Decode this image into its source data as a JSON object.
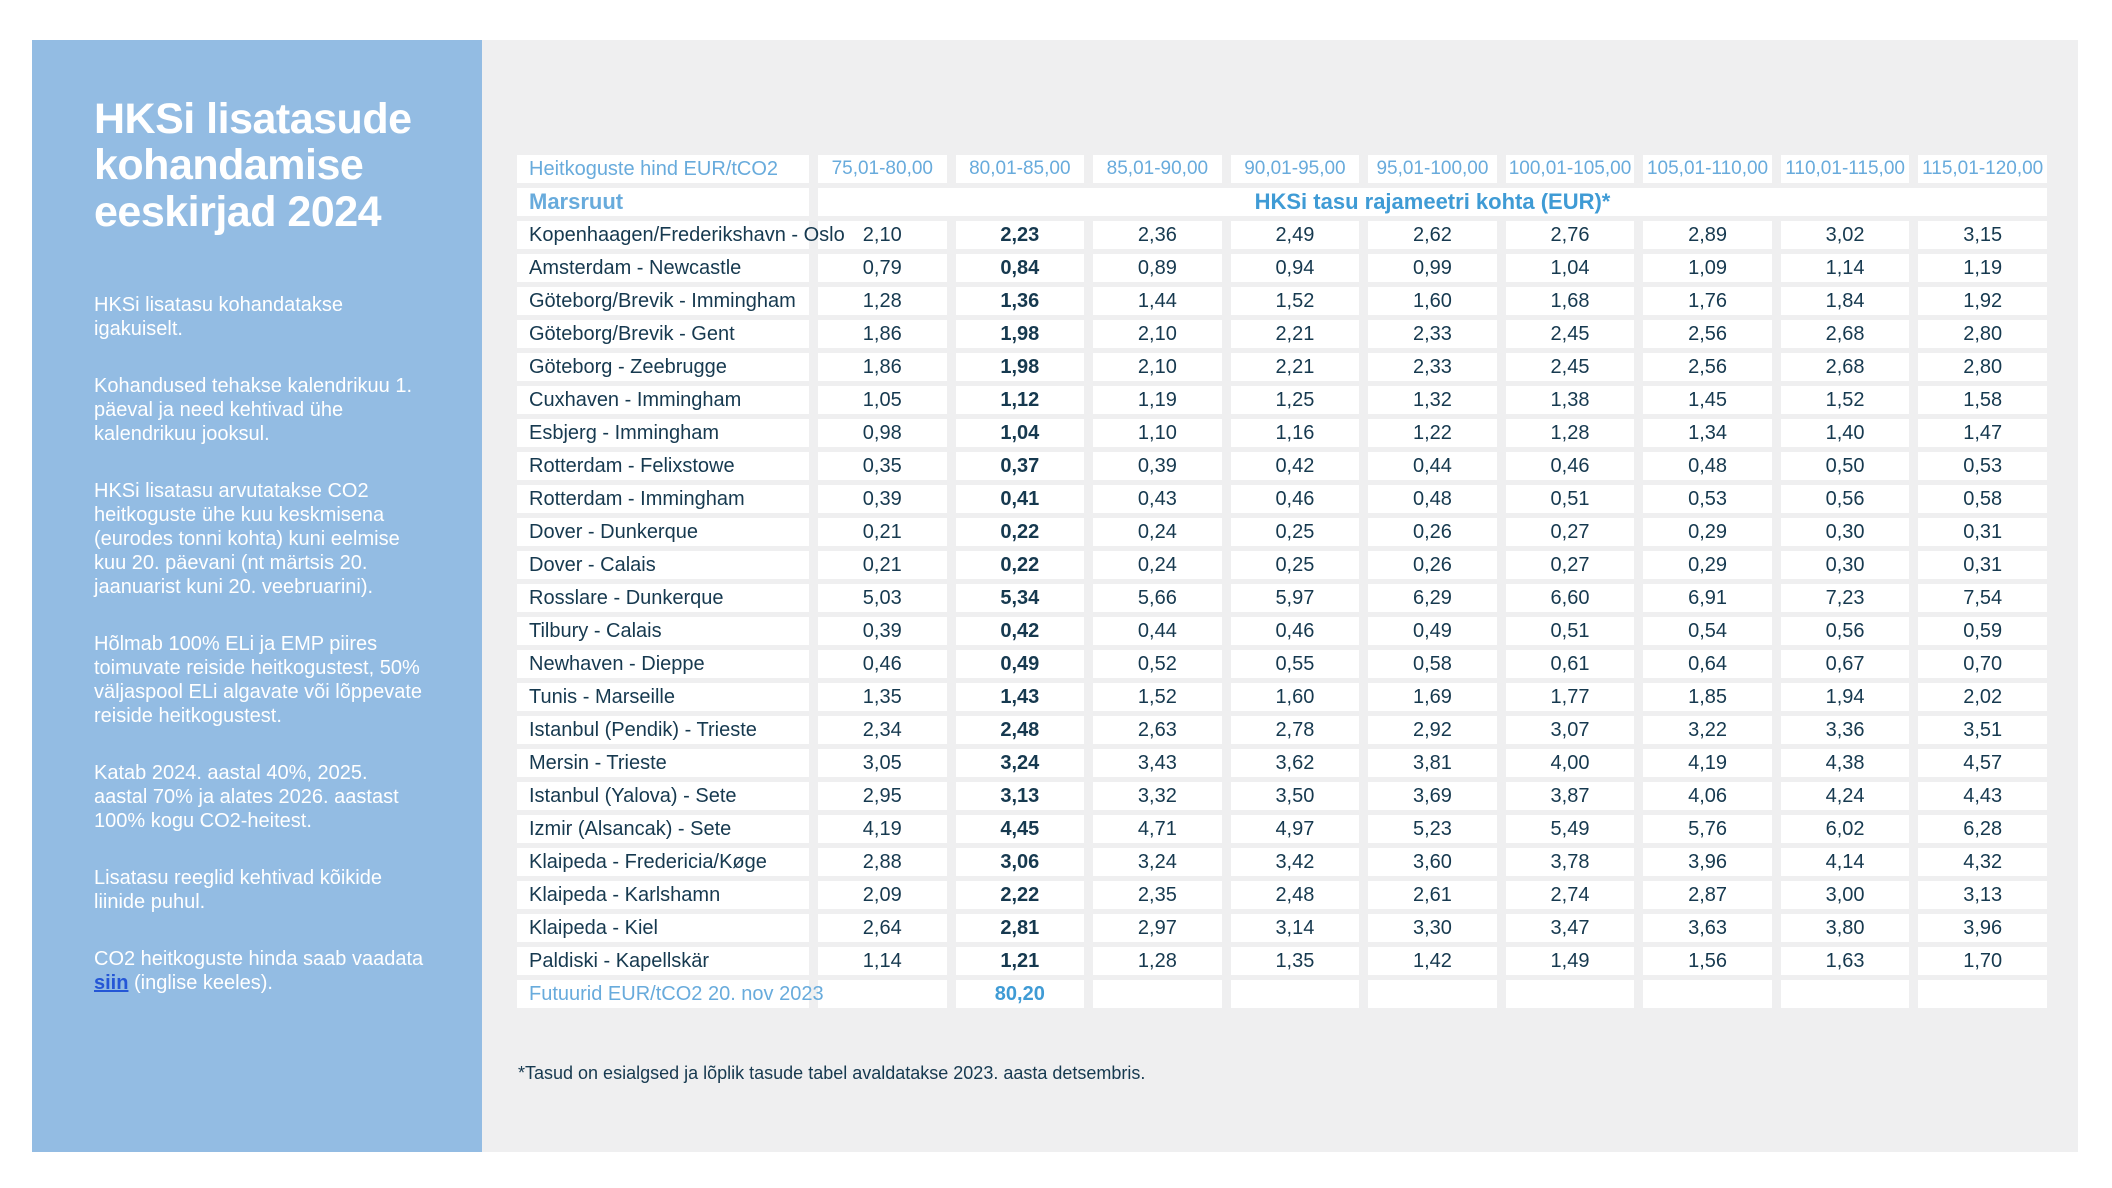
{
  "colors": {
    "sidebar_blue": "#93bce3",
    "panel_gray": "#efeff0",
    "navy_text": "#16394f",
    "light_blue_text": "#68abdc",
    "mid_blue_text": "#3f9bd5",
    "link_blue": "#2456d6"
  },
  "sidebar": {
    "title": "HKSi lisatasude kohandamise eeskirjad 2024",
    "paragraphs": [
      "HKSi lisatasu kohandatakse igakuiselt.",
      "Kohandused tehakse kalendrikuu 1. päeval ja need kehtivad ühe kalendrikuu jooksul.",
      "HKSi lisatasu arvutatakse CO2 heitkoguste ühe kuu keskmisena (eurodes tonni kohta) kuni eelmise kuu 20. päevani (nt märtsis 20. jaanuarist kuni 20. veebruarini).",
      "Hõlmab 100% ELi ja EMP piires toimuvate reiside heitkogustest, 50% väljaspool ELi algavate või lõppevate reiside heitkogustest.",
      "Katab 2024. aastal 40%, 2025. aastal 70% ja alates 2026. aastast 100% kogu CO2-heitest.",
      "Lisatasu reeglid kehtivad kõikide liinide puhul."
    ],
    "link_text": {
      "before": "CO2 heitkoguste hinda saab vaadata ",
      "link": "siin",
      "after": " (inglise keeles)."
    }
  },
  "table": {
    "header_label": "Heitkoguste hind EUR/tCO2",
    "price_ranges": [
      "75,01-80,00",
      "80,01-85,00",
      "85,01-90,00",
      "90,01-95,00",
      "95,01-100,00",
      "100,01-105,00",
      "105,01-110,00",
      "110,01-115,00",
      "115,01-120,00"
    ],
    "route_header": "Marsruut",
    "fee_header": "HKSi tasu rajameetri kohta (EUR)*",
    "bold_column_index": 1,
    "rows": [
      {
        "route": "Kopenhaagen/Frederikshavn - Oslo",
        "values": [
          "2,10",
          "2,23",
          "2,36",
          "2,49",
          "2,62",
          "2,76",
          "2,89",
          "3,02",
          "3,15"
        ]
      },
      {
        "route": "Amsterdam - Newcastle",
        "values": [
          "0,79",
          "0,84",
          "0,89",
          "0,94",
          "0,99",
          "1,04",
          "1,09",
          "1,14",
          "1,19"
        ]
      },
      {
        "route": "Göteborg/Brevik - Immingham",
        "values": [
          "1,28",
          "1,36",
          "1,44",
          "1,52",
          "1,60",
          "1,68",
          "1,76",
          "1,84",
          "1,92"
        ]
      },
      {
        "route": "Göteborg/Brevik - Gent",
        "values": [
          "1,86",
          "1,98",
          "2,10",
          "2,21",
          "2,33",
          "2,45",
          "2,56",
          "2,68",
          "2,80"
        ]
      },
      {
        "route": "Göteborg - Zeebrugge",
        "values": [
          "1,86",
          "1,98",
          "2,10",
          "2,21",
          "2,33",
          "2,45",
          "2,56",
          "2,68",
          "2,80"
        ]
      },
      {
        "route": "Cuxhaven - Immingham",
        "values": [
          "1,05",
          "1,12",
          "1,19",
          "1,25",
          "1,32",
          "1,38",
          "1,45",
          "1,52",
          "1,58"
        ]
      },
      {
        "route": "Esbjerg - Immingham",
        "values": [
          "0,98",
          "1,04",
          "1,10",
          "1,16",
          "1,22",
          "1,28",
          "1,34",
          "1,40",
          "1,47"
        ]
      },
      {
        "route": "Rotterdam - Felixstowe",
        "values": [
          "0,35",
          "0,37",
          "0,39",
          "0,42",
          "0,44",
          "0,46",
          "0,48",
          "0,50",
          "0,53"
        ]
      },
      {
        "route": "Rotterdam - Immingham",
        "values": [
          "0,39",
          "0,41",
          "0,43",
          "0,46",
          "0,48",
          "0,51",
          "0,53",
          "0,56",
          "0,58"
        ]
      },
      {
        "route": "Dover - Dunkerque",
        "values": [
          "0,21",
          "0,22",
          "0,24",
          "0,25",
          "0,26",
          "0,27",
          "0,29",
          "0,30",
          "0,31"
        ]
      },
      {
        "route": "Dover - Calais",
        "values": [
          "0,21",
          "0,22",
          "0,24",
          "0,25",
          "0,26",
          "0,27",
          "0,29",
          "0,30",
          "0,31"
        ]
      },
      {
        "route": "Rosslare - Dunkerque",
        "values": [
          "5,03",
          "5,34",
          "5,66",
          "5,97",
          "6,29",
          "6,60",
          "6,91",
          "7,23",
          "7,54"
        ]
      },
      {
        "route": "Tilbury - Calais",
        "values": [
          "0,39",
          "0,42",
          "0,44",
          "0,46",
          "0,49",
          "0,51",
          "0,54",
          "0,56",
          "0,59"
        ]
      },
      {
        "route": "Newhaven - Dieppe",
        "values": [
          "0,46",
          "0,49",
          "0,52",
          "0,55",
          "0,58",
          "0,61",
          "0,64",
          "0,67",
          "0,70"
        ]
      },
      {
        "route": "Tunis - Marseille",
        "values": [
          "1,35",
          "1,43",
          "1,52",
          "1,60",
          "1,69",
          "1,77",
          "1,85",
          "1,94",
          "2,02"
        ]
      },
      {
        "route": "Istanbul (Pendik) - Trieste",
        "values": [
          "2,34",
          "2,48",
          "2,63",
          "2,78",
          "2,92",
          "3,07",
          "3,22",
          "3,36",
          "3,51"
        ]
      },
      {
        "route": "Mersin - Trieste",
        "values": [
          "3,05",
          "3,24",
          "3,43",
          "3,62",
          "3,81",
          "4,00",
          "4,19",
          "4,38",
          "4,57"
        ]
      },
      {
        "route": "Istanbul (Yalova) - Sete",
        "values": [
          "2,95",
          "3,13",
          "3,32",
          "3,50",
          "3,69",
          "3,87",
          "4,06",
          "4,24",
          "4,43"
        ]
      },
      {
        "route": "Izmir (Alsancak) - Sete",
        "values": [
          "4,19",
          "4,45",
          "4,71",
          "4,97",
          "5,23",
          "5,49",
          "5,76",
          "6,02",
          "6,28"
        ]
      },
      {
        "route": "Klaipeda - Fredericia/Køge",
        "values": [
          "2,88",
          "3,06",
          "3,24",
          "3,42",
          "3,60",
          "3,78",
          "3,96",
          "4,14",
          "4,32"
        ]
      },
      {
        "route": "Klaipeda - Karlshamn",
        "values": [
          "2,09",
          "2,22",
          "2,35",
          "2,48",
          "2,61",
          "2,74",
          "2,87",
          "3,00",
          "3,13"
        ]
      },
      {
        "route": "Klaipeda - Kiel",
        "values": [
          "2,64",
          "2,81",
          "2,97",
          "3,14",
          "3,30",
          "3,47",
          "3,63",
          "3,80",
          "3,96"
        ]
      },
      {
        "route": "Paldiski - Kapellskär",
        "values": [
          "1,14",
          "1,21",
          "1,28",
          "1,35",
          "1,42",
          "1,49",
          "1,56",
          "1,63",
          "1,70"
        ]
      }
    ],
    "futures_label": "Futuurid EUR/tCO2 20. nov 2023",
    "futures_value": "80,20",
    "futures_value_col": 1
  },
  "footnote": "*Tasud on esialgsed ja lõplik tasude tabel avaldatakse 2023. aasta detsembris."
}
